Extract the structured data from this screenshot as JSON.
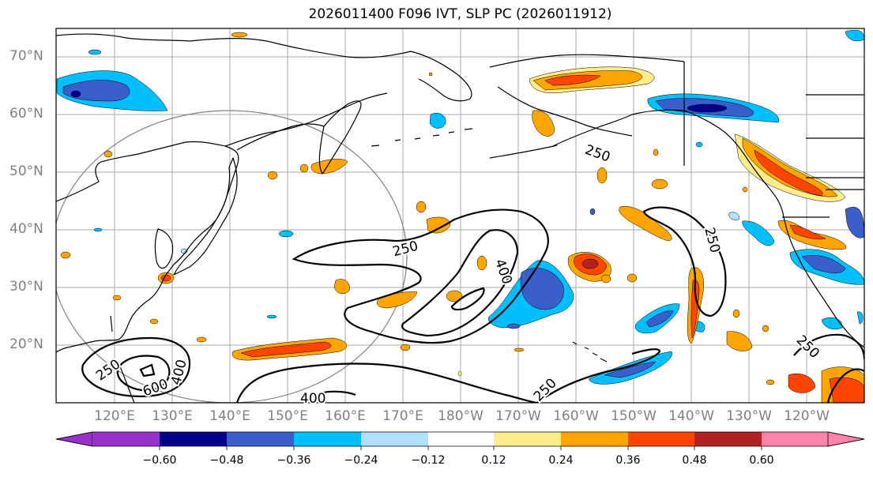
{
  "title": "2026011400 F096 IVT, SLP PC (2026011912)",
  "lat_labels": [
    "70°N",
    "60°N",
    "50°N",
    "40°N",
    "30°N",
    "20°N"
  ],
  "lon_labels": [
    "120°E",
    "130°E",
    "140°E",
    "150°E",
    "160°E",
    "170°E",
    "180°W",
    "170°W",
    "160°W",
    "150°W",
    "140°W",
    "130°W",
    "120°W"
  ],
  "contour_labels": [
    "250",
    "250",
    "250",
    "250",
    "250",
    "250",
    "400",
    "400",
    "400",
    "600"
  ],
  "colorbar": {
    "ticks": [
      "−0.60",
      "−0.48",
      "−0.36",
      "−0.24",
      "−0.12",
      "0.12",
      "0.24",
      "0.36",
      "0.48",
      "0.60"
    ],
    "colors": [
      "#9932CC",
      "#00008B",
      "#3A5FCD",
      "#00BFFF",
      "#B0E2FF",
      "#FFFFFF",
      "#FFEC8B",
      "#FFA500",
      "#FF4500",
      "#B22222",
      "#FF82AB"
    ]
  },
  "colors": {
    "grid": "#a0a0a0",
    "coast": "#000000",
    "axis_label": "#808080"
  }
}
